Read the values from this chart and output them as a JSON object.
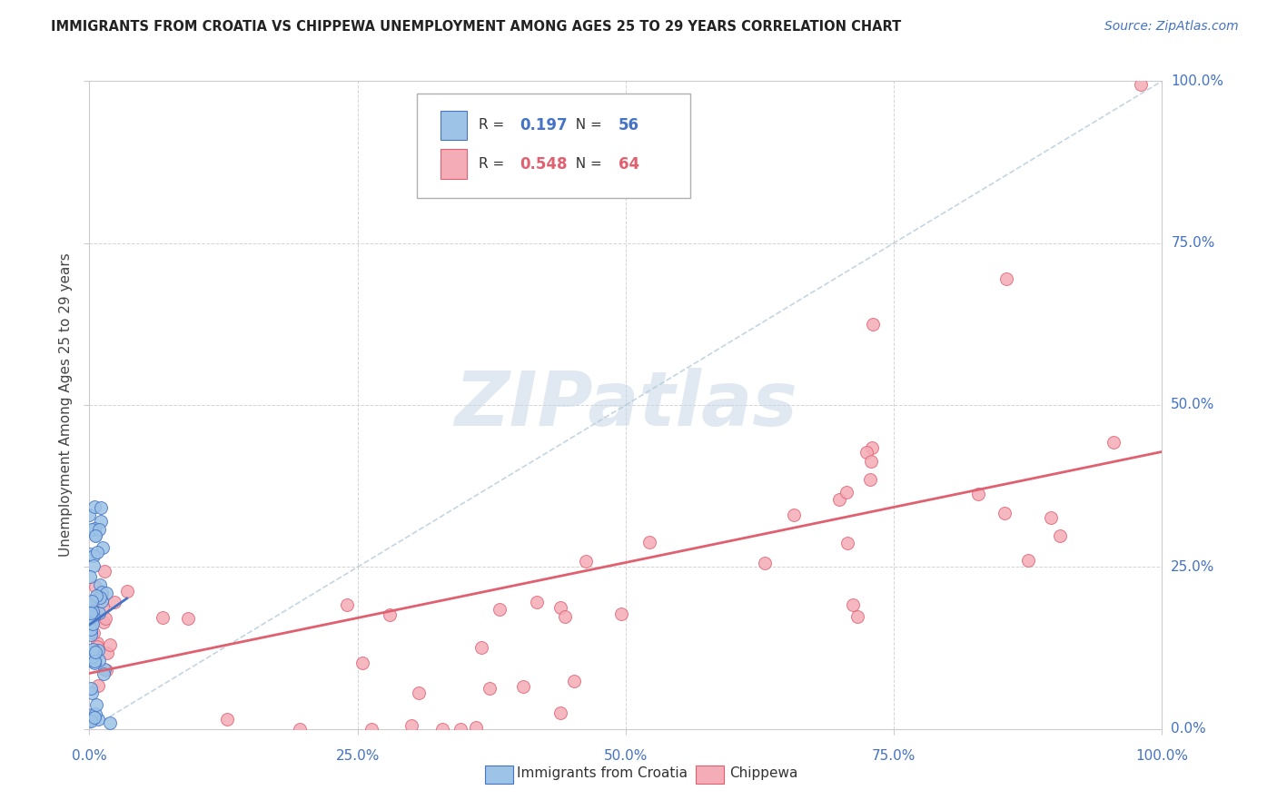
{
  "title": "IMMIGRANTS FROM CROATIA VS CHIPPEWA UNEMPLOYMENT AMONG AGES 25 TO 29 YEARS CORRELATION CHART",
  "source": "Source: ZipAtlas.com",
  "ylabel": "Unemployment Among Ages 25 to 29 years",
  "xlim": [
    0,
    1.0
  ],
  "ylim": [
    0,
    1.0
  ],
  "xticks": [
    0.0,
    0.25,
    0.5,
    0.75,
    1.0
  ],
  "yticks": [
    0.0,
    0.25,
    0.5,
    0.75,
    1.0
  ],
  "xtick_labels": [
    "0.0%",
    "25.0%",
    "50.0%",
    "75.0%",
    "100.0%"
  ],
  "ytick_labels": [
    "0.0%",
    "25.0%",
    "50.0%",
    "75.0%",
    "100.0%"
  ],
  "tick_color": "#4472c4",
  "croatia_color": "#9dc3e6",
  "croatia_edge": "#4472c4",
  "chippewa_color": "#f4acb7",
  "chippewa_edge": "#e06070",
  "croatia_R": "0.197",
  "croatia_N": "56",
  "chippewa_R": "0.548",
  "chippewa_N": "64",
  "watermark": "ZIPatlas",
  "watermark_color": "#c8d8e8",
  "background_color": "#ffffff",
  "grid_color": "#d0d0d0",
  "legend_label_croatia": "Immigrants from Croatia",
  "legend_label_chippewa": "Chippewa"
}
